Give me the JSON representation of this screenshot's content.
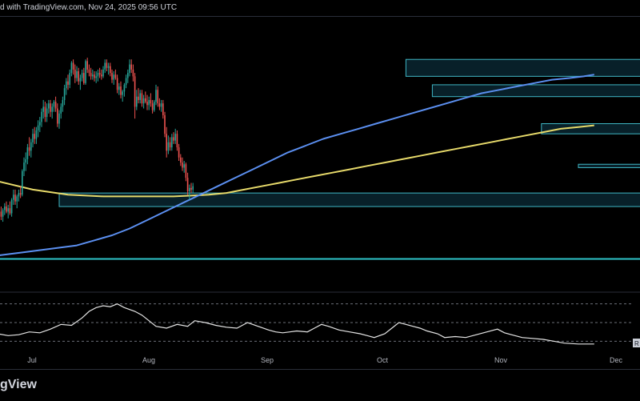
{
  "header": {
    "text": "d with TradingView.com, Nov 24, 2025 09:56 UTC"
  },
  "footer": {
    "brand": "gView"
  },
  "chart_data": {
    "type": "candlestick",
    "x_ticks": [
      "Jul",
      "Aug",
      "Sep",
      "Oct",
      "Nov",
      "Dec"
    ],
    "rsi_badge": "R",
    "candles": [
      {
        "o": 12,
        "h": 20,
        "l": 6,
        "c": 18
      },
      {
        "o": 18,
        "h": 24,
        "l": 14,
        "c": 20
      },
      {
        "o": 20,
        "h": 23,
        "l": 15,
        "c": 17
      },
      {
        "o": 17,
        "h": 22,
        "l": 14,
        "c": 21
      },
      {
        "o": 21,
        "h": 25,
        "l": 18,
        "c": 23
      },
      {
        "o": 23,
        "h": 26,
        "l": 19,
        "c": 20
      },
      {
        "o": 20,
        "h": 24,
        "l": 16,
        "c": 22
      },
      {
        "o": 22,
        "h": 26,
        "l": 18,
        "c": 19
      },
      {
        "o": 19,
        "h": 28,
        "l": 17,
        "c": 27
      },
      {
        "o": 27,
        "h": 33,
        "l": 24,
        "c": 30
      },
      {
        "o": 30,
        "h": 33,
        "l": 24,
        "c": 26
      },
      {
        "o": 26,
        "h": 30,
        "l": 22,
        "c": 29
      },
      {
        "o": 29,
        "h": 33,
        "l": 26,
        "c": 31
      },
      {
        "o": 31,
        "h": 35,
        "l": 28,
        "c": 30
      },
      {
        "o": 30,
        "h": 45,
        "l": 29,
        "c": 44
      },
      {
        "o": 44,
        "h": 52,
        "l": 41,
        "c": 49
      },
      {
        "o": 49,
        "h": 55,
        "l": 44,
        "c": 51
      },
      {
        "o": 51,
        "h": 60,
        "l": 48,
        "c": 58
      },
      {
        "o": 58,
        "h": 64,
        "l": 53,
        "c": 56
      },
      {
        "o": 56,
        "h": 63,
        "l": 52,
        "c": 61
      },
      {
        "o": 61,
        "h": 69,
        "l": 58,
        "c": 66
      },
      {
        "o": 66,
        "h": 70,
        "l": 60,
        "c": 63
      },
      {
        "o": 63,
        "h": 70,
        "l": 60,
        "c": 68
      },
      {
        "o": 68,
        "h": 74,
        "l": 64,
        "c": 71
      },
      {
        "o": 71,
        "h": 76,
        "l": 67,
        "c": 73
      },
      {
        "o": 73,
        "h": 81,
        "l": 70,
        "c": 79
      },
      {
        "o": 79,
        "h": 86,
        "l": 75,
        "c": 82
      },
      {
        "o": 82,
        "h": 85,
        "l": 73,
        "c": 76
      },
      {
        "o": 76,
        "h": 84,
        "l": 73,
        "c": 81
      },
      {
        "o": 81,
        "h": 86,
        "l": 78,
        "c": 84
      },
      {
        "o": 84,
        "h": 86,
        "l": 76,
        "c": 79
      },
      {
        "o": 79,
        "h": 84,
        "l": 75,
        "c": 82
      },
      {
        "o": 82,
        "h": 86,
        "l": 79,
        "c": 85
      },
      {
        "o": 85,
        "h": 88,
        "l": 79,
        "c": 81
      },
      {
        "o": 81,
        "h": 84,
        "l": 70,
        "c": 72
      },
      {
        "o": 72,
        "h": 80,
        "l": 69,
        "c": 78
      },
      {
        "o": 78,
        "h": 84,
        "l": 75,
        "c": 82
      },
      {
        "o": 82,
        "h": 88,
        "l": 79,
        "c": 86
      },
      {
        "o": 86,
        "h": 95,
        "l": 83,
        "c": 93
      },
      {
        "o": 93,
        "h": 99,
        "l": 89,
        "c": 97
      },
      {
        "o": 97,
        "h": 101,
        "l": 92,
        "c": 95
      },
      {
        "o": 95,
        "h": 104,
        "l": 93,
        "c": 102
      },
      {
        "o": 102,
        "h": 109,
        "l": 100,
        "c": 108
      },
      {
        "o": 108,
        "h": 110,
        "l": 101,
        "c": 104
      },
      {
        "o": 104,
        "h": 107,
        "l": 96,
        "c": 99
      },
      {
        "o": 99,
        "h": 106,
        "l": 97,
        "c": 103
      },
      {
        "o": 103,
        "h": 105,
        "l": 95,
        "c": 97
      },
      {
        "o": 97,
        "h": 101,
        "l": 92,
        "c": 99
      },
      {
        "o": 99,
        "h": 104,
        "l": 97,
        "c": 102
      },
      {
        "o": 102,
        "h": 105,
        "l": 95,
        "c": 96
      },
      {
        "o": 96,
        "h": 110,
        "l": 95,
        "c": 109
      },
      {
        "o": 109,
        "h": 111,
        "l": 102,
        "c": 104
      },
      {
        "o": 104,
        "h": 107,
        "l": 100,
        "c": 102
      },
      {
        "o": 102,
        "h": 105,
        "l": 98,
        "c": 100
      },
      {
        "o": 100,
        "h": 104,
        "l": 98,
        "c": 101
      },
      {
        "o": 101,
        "h": 103,
        "l": 97,
        "c": 99
      },
      {
        "o": 99,
        "h": 103,
        "l": 96,
        "c": 100
      },
      {
        "o": 100,
        "h": 104,
        "l": 97,
        "c": 102
      },
      {
        "o": 102,
        "h": 105,
        "l": 99,
        "c": 101
      },
      {
        "o": 101,
        "h": 104,
        "l": 98,
        "c": 100
      },
      {
        "o": 100,
        "h": 106,
        "l": 99,
        "c": 104
      },
      {
        "o": 104,
        "h": 110,
        "l": 102,
        "c": 108
      },
      {
        "o": 108,
        "h": 110,
        "l": 103,
        "c": 105
      },
      {
        "o": 105,
        "h": 108,
        "l": 101,
        "c": 106
      },
      {
        "o": 106,
        "h": 108,
        "l": 100,
        "c": 102
      },
      {
        "o": 102,
        "h": 104,
        "l": 96,
        "c": 98
      },
      {
        "o": 98,
        "h": 103,
        "l": 95,
        "c": 101
      },
      {
        "o": 101,
        "h": 104,
        "l": 98,
        "c": 99
      },
      {
        "o": 99,
        "h": 101,
        "l": 90,
        "c": 92
      },
      {
        "o": 92,
        "h": 96,
        "l": 89,
        "c": 94
      },
      {
        "o": 94,
        "h": 97,
        "l": 87,
        "c": 89
      },
      {
        "o": 89,
        "h": 92,
        "l": 85,
        "c": 91
      },
      {
        "o": 91,
        "h": 96,
        "l": 88,
        "c": 95
      },
      {
        "o": 95,
        "h": 101,
        "l": 93,
        "c": 99
      },
      {
        "o": 99,
        "h": 104,
        "l": 96,
        "c": 102
      },
      {
        "o": 102,
        "h": 110,
        "l": 100,
        "c": 107
      },
      {
        "o": 107,
        "h": 110,
        "l": 102,
        "c": 104
      },
      {
        "o": 104,
        "h": 107,
        "l": 97,
        "c": 100
      },
      {
        "o": 100,
        "h": 102,
        "l": 75,
        "c": 82
      },
      {
        "o": 82,
        "h": 92,
        "l": 80,
        "c": 88
      },
      {
        "o": 88,
        "h": 93,
        "l": 84,
        "c": 86
      },
      {
        "o": 86,
        "h": 92,
        "l": 84,
        "c": 90
      },
      {
        "o": 90,
        "h": 92,
        "l": 82,
        "c": 84
      },
      {
        "o": 84,
        "h": 89,
        "l": 81,
        "c": 87
      },
      {
        "o": 87,
        "h": 91,
        "l": 84,
        "c": 85
      },
      {
        "o": 85,
        "h": 89,
        "l": 80,
        "c": 83
      },
      {
        "o": 83,
        "h": 88,
        "l": 80,
        "c": 86
      },
      {
        "o": 86,
        "h": 90,
        "l": 82,
        "c": 84
      },
      {
        "o": 84,
        "h": 86,
        "l": 78,
        "c": 80
      },
      {
        "o": 80,
        "h": 86,
        "l": 79,
        "c": 85
      },
      {
        "o": 85,
        "h": 95,
        "l": 83,
        "c": 92
      },
      {
        "o": 92,
        "h": 94,
        "l": 82,
        "c": 84
      },
      {
        "o": 84,
        "h": 87,
        "l": 80,
        "c": 82
      },
      {
        "o": 82,
        "h": 86,
        "l": 79,
        "c": 84
      },
      {
        "o": 84,
        "h": 86,
        "l": 75,
        "c": 77
      },
      {
        "o": 77,
        "h": 79,
        "l": 64,
        "c": 66
      },
      {
        "o": 66,
        "h": 70,
        "l": 52,
        "c": 56
      },
      {
        "o": 56,
        "h": 65,
        "l": 54,
        "c": 61
      },
      {
        "o": 61,
        "h": 64,
        "l": 56,
        "c": 58
      },
      {
        "o": 58,
        "h": 66,
        "l": 56,
        "c": 64
      },
      {
        "o": 64,
        "h": 67,
        "l": 60,
        "c": 62
      },
      {
        "o": 62,
        "h": 69,
        "l": 60,
        "c": 66
      },
      {
        "o": 66,
        "h": 68,
        "l": 56,
        "c": 58
      },
      {
        "o": 58,
        "h": 60,
        "l": 50,
        "c": 52
      },
      {
        "o": 52,
        "h": 54,
        "l": 47,
        "c": 49
      },
      {
        "o": 49,
        "h": 52,
        "l": 44,
        "c": 46
      },
      {
        "o": 46,
        "h": 50,
        "l": 43,
        "c": 48
      },
      {
        "o": 48,
        "h": 49,
        "l": 38,
        "c": 40
      },
      {
        "o": 40,
        "h": 43,
        "l": 30,
        "c": 32
      },
      {
        "o": 32,
        "h": 36,
        "l": 27,
        "c": 34
      },
      {
        "o": 34,
        "h": 37,
        "l": 31,
        "c": 33
      },
      {
        "o": 33,
        "h": 37,
        "l": 31,
        "c": 35
      }
    ],
    "sma_fast": [
      [
        0,
        -6
      ],
      [
        15,
        -4
      ],
      [
        30,
        -2
      ],
      [
        45,
        0
      ],
      [
        55,
        3
      ],
      [
        65,
        6
      ],
      [
        75,
        10
      ],
      [
        85,
        15
      ],
      [
        95,
        20
      ],
      [
        105,
        25
      ],
      [
        115,
        30
      ],
      [
        125,
        35
      ],
      [
        135,
        40
      ],
      [
        145,
        45
      ],
      [
        155,
        50
      ],
      [
        165,
        55
      ],
      [
        175,
        59
      ],
      [
        185,
        63
      ],
      [
        195,
        66
      ],
      [
        205,
        69
      ],
      [
        215,
        72
      ],
      [
        225,
        75
      ],
      [
        235,
        78
      ],
      [
        245,
        81
      ],
      [
        255,
        84
      ],
      [
        265,
        87
      ],
      [
        275,
        90
      ],
      [
        285,
        92
      ],
      [
        295,
        94
      ],
      [
        305,
        96
      ],
      [
        315,
        98
      ],
      [
        325,
        99
      ],
      [
        333,
        100
      ],
      [
        339,
        101
      ]
    ],
    "sma_slow": [
      [
        0,
        38
      ],
      [
        20,
        33
      ],
      [
        40,
        30
      ],
      [
        60,
        29
      ],
      [
        80,
        29
      ],
      [
        100,
        29
      ],
      [
        120,
        30
      ],
      [
        130,
        31
      ],
      [
        140,
        33
      ],
      [
        150,
        35
      ],
      [
        160,
        37
      ],
      [
        170,
        39
      ],
      [
        180,
        41
      ],
      [
        190,
        43
      ],
      [
        200,
        45
      ],
      [
        210,
        47
      ],
      [
        220,
        49
      ],
      [
        230,
        51
      ],
      [
        240,
        53
      ],
      [
        250,
        55
      ],
      [
        260,
        57
      ],
      [
        270,
        59
      ],
      [
        280,
        61
      ],
      [
        290,
        63
      ],
      [
        300,
        65
      ],
      [
        310,
        67
      ],
      [
        320,
        69
      ],
      [
        330,
        70
      ],
      [
        339,
        71
      ]
    ],
    "zones": [
      {
        "y0": 100,
        "y1": 110,
        "x0": 232,
        "x1": 380
      },
      {
        "y0": 88,
        "y1": 95,
        "x0": 247,
        "x1": 380
      },
      {
        "y0": 66,
        "y1": 72,
        "x0": 309,
        "x1": 380
      },
      {
        "y0": 46,
        "y1": 48,
        "x0": 330,
        "x1": 380
      },
      {
        "y0": 23,
        "y1": 31,
        "x0": 35,
        "x1": 380
      }
    ],
    "support_level": -8,
    "rsi": [
      [
        0,
        38
      ],
      [
        6,
        36
      ],
      [
        12,
        37
      ],
      [
        18,
        40
      ],
      [
        24,
        39
      ],
      [
        30,
        43
      ],
      [
        36,
        48
      ],
      [
        42,
        47
      ],
      [
        48,
        55
      ],
      [
        52,
        62
      ],
      [
        56,
        66
      ],
      [
        60,
        68
      ],
      [
        64,
        67
      ],
      [
        68,
        70
      ],
      [
        72,
        66
      ],
      [
        78,
        62
      ],
      [
        82,
        58
      ],
      [
        86,
        52
      ],
      [
        90,
        46
      ],
      [
        96,
        44
      ],
      [
        102,
        48
      ],
      [
        108,
        46
      ],
      [
        112,
        52
      ],
      [
        118,
        50
      ],
      [
        124,
        47
      ],
      [
        130,
        45
      ],
      [
        136,
        44
      ],
      [
        142,
        50
      ],
      [
        148,
        46
      ],
      [
        154,
        42
      ],
      [
        158,
        40
      ],
      [
        162,
        39
      ],
      [
        166,
        40
      ],
      [
        170,
        41
      ],
      [
        176,
        40
      ],
      [
        180,
        44
      ],
      [
        184,
        48
      ],
      [
        188,
        46
      ],
      [
        194,
        42
      ],
      [
        200,
        40
      ],
      [
        206,
        38
      ],
      [
        210,
        36
      ],
      [
        214,
        34
      ],
      [
        220,
        38
      ],
      [
        224,
        44
      ],
      [
        228,
        50
      ],
      [
        232,
        48
      ],
      [
        236,
        46
      ],
      [
        240,
        44
      ],
      [
        244,
        41
      ],
      [
        250,
        38
      ],
      [
        254,
        34
      ],
      [
        260,
        35
      ],
      [
        266,
        34
      ],
      [
        272,
        37
      ],
      [
        278,
        40
      ],
      [
        284,
        43
      ],
      [
        288,
        39
      ],
      [
        292,
        37
      ],
      [
        298,
        34
      ],
      [
        304,
        33
      ],
      [
        310,
        32
      ],
      [
        316,
        30
      ],
      [
        322,
        28
      ],
      [
        330,
        27
      ],
      [
        339,
        27
      ]
    ]
  }
}
